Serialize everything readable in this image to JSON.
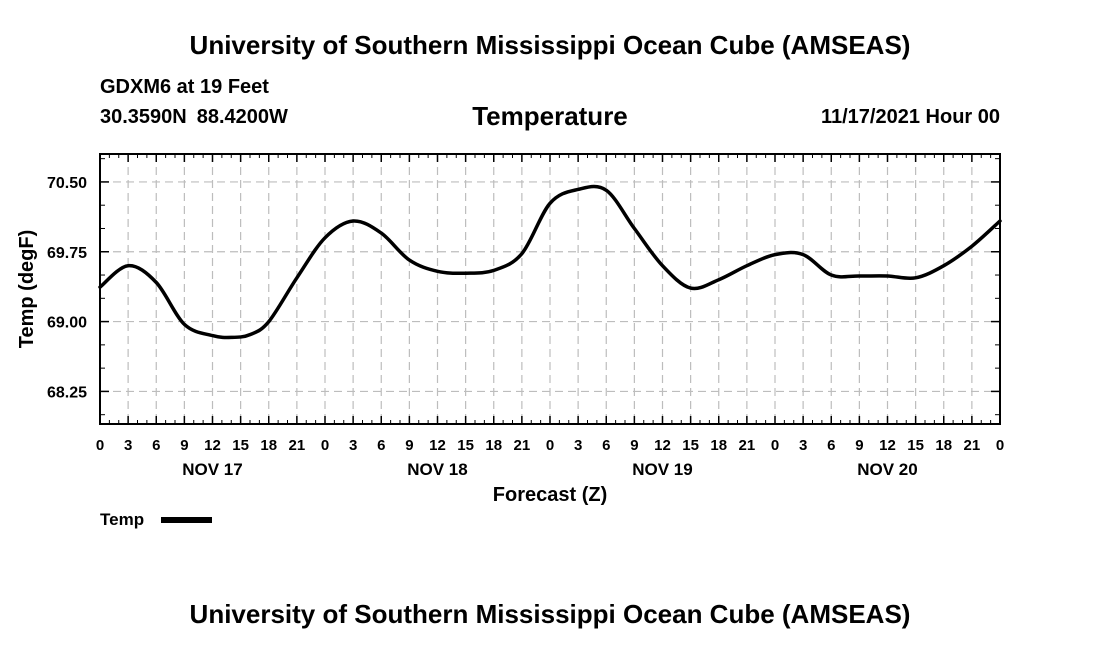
{
  "header": {
    "main_title": "University of Southern Mississippi Ocean Cube (AMSEAS)",
    "station": "GDXM6 at 19 Feet",
    "lat": "30.3590N",
    "lon": "88.4200W",
    "chart_title": "Temperature",
    "run_info": "11/17/2021 Hour 00"
  },
  "footer": {
    "main_title": "University of Southern Mississippi Ocean Cube (AMSEAS)"
  },
  "chart_data": {
    "type": "line",
    "title": "Temperature",
    "xlabel": "Forecast (Z)",
    "ylabel": "Temp (degF)",
    "xlim": [
      0,
      96
    ],
    "ylim": [
      67.9,
      70.8
    ],
    "grid": true,
    "yticks": [
      68.25,
      69.0,
      69.75,
      70.5
    ],
    "ytick_labels": [
      "68.25",
      "69.00",
      "69.75",
      "70.50"
    ],
    "xtick_hours": [
      0,
      3,
      6,
      9,
      12,
      15,
      18,
      21,
      24,
      27,
      30,
      33,
      36,
      39,
      42,
      45,
      48,
      51,
      54,
      57,
      60,
      63,
      66,
      69,
      72,
      75,
      78,
      81,
      84,
      87,
      90,
      93,
      96
    ],
    "xtick_labels": [
      "0",
      "3",
      "6",
      "9",
      "12",
      "15",
      "18",
      "21",
      "0",
      "3",
      "6",
      "9",
      "12",
      "15",
      "18",
      "21",
      "0",
      "3",
      "6",
      "9",
      "12",
      "15",
      "18",
      "21",
      "0",
      "3",
      "6",
      "9",
      "12",
      "15",
      "18",
      "21",
      "0"
    ],
    "day_labels": [
      {
        "label": "NOV 17",
        "hour": 12
      },
      {
        "label": "NOV 18",
        "hour": 36
      },
      {
        "label": "NOV 19",
        "hour": 60
      },
      {
        "label": "NOV 20",
        "hour": 84
      }
    ],
    "series": [
      {
        "name": "Temp",
        "x": [
          0,
          3,
          6,
          9,
          12,
          14,
          16,
          18,
          21,
          24,
          27,
          30,
          33,
          36,
          39,
          42,
          45,
          48,
          51,
          54,
          57,
          60,
          63,
          66,
          69,
          72,
          75,
          78,
          81,
          84,
          87,
          90,
          93,
          96
        ],
        "values": [
          69.37,
          69.6,
          69.42,
          68.97,
          68.85,
          68.83,
          68.86,
          69.0,
          69.47,
          69.9,
          70.08,
          69.95,
          69.66,
          69.54,
          69.52,
          69.55,
          69.73,
          70.27,
          70.42,
          70.41,
          70.0,
          69.6,
          69.36,
          69.45,
          69.6,
          69.72,
          69.72,
          69.5,
          69.49,
          69.49,
          69.47,
          69.6,
          69.81,
          70.08
        ]
      }
    ],
    "legend": {
      "label": "Temp",
      "placement": "bottom-left"
    }
  }
}
